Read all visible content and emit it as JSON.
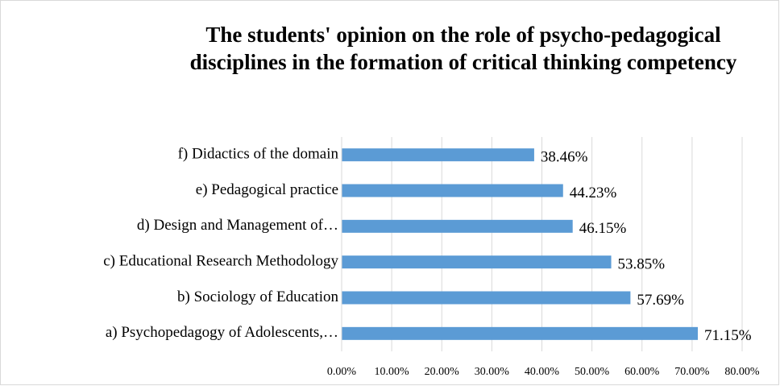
{
  "chart_data": {
    "type": "bar",
    "orientation": "horizontal",
    "title": "The students' opinion on the role of psycho-pedagogical disciplines in the formation of critical thinking competency",
    "categories": [
      "a) Psychopedagogy of Adolescents,…",
      "b) Sociology of Education",
      "c) Educational Research Methodology",
      "d) Design and Management of…",
      "e) Pedagogical practice",
      "f) Didactics of the domain"
    ],
    "values": [
      71.15,
      57.69,
      53.85,
      46.15,
      44.23,
      38.46
    ],
    "value_labels": [
      "71.15%",
      "57.69%",
      "53.85%",
      "46.15%",
      "44.23%",
      "38.46%"
    ],
    "color": "#5b9bd5",
    "xlim": [
      0,
      80
    ],
    "xticks": [
      {
        "value": 0,
        "label": "0.00%"
      },
      {
        "value": 10,
        "label": "10.00%"
      },
      {
        "value": 20,
        "label": "20.00%"
      },
      {
        "value": 30,
        "label": "30.00%"
      },
      {
        "value": 40,
        "label": "40.00%"
      },
      {
        "value": 50,
        "label": "50.00%"
      },
      {
        "value": 60,
        "label": "60.00%"
      },
      {
        "value": 70,
        "label": "70.00%"
      },
      {
        "value": 80,
        "label": "80.00%"
      }
    ],
    "grid": true
  }
}
